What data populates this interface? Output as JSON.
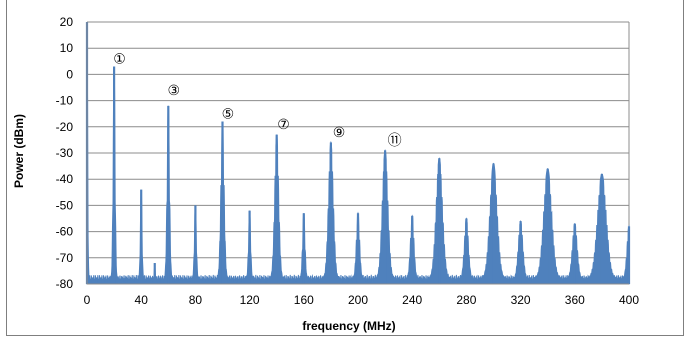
{
  "chart_data": {
    "type": "line",
    "title": "",
    "xlabel": "frequency (MHz)",
    "ylabel": "Power (dBm)",
    "xlim": [
      0,
      400
    ],
    "ylim": [
      -80,
      20
    ],
    "x_ticks": [
      "0",
      "40",
      "80",
      "120",
      "160",
      "200",
      "240",
      "280",
      "320",
      "360",
      "400"
    ],
    "y_ticks": [
      "20",
      "10",
      "0",
      "-10",
      "-20",
      "-30",
      "-40",
      "-50",
      "-60",
      "-70",
      "-80"
    ],
    "grid": "horizontal",
    "legend": "none",
    "series_color": "#4f81bd",
    "noise_floor_dbm": -78,
    "series": [
      {
        "harmonics_mhz": [
          0,
          20,
          40,
          50,
          60,
          80,
          100,
          120,
          140,
          160,
          180,
          200,
          220,
          240,
          260,
          280,
          300,
          320,
          340,
          360,
          380,
          400
        ],
        "peak_dbm": [
          20,
          3,
          -44,
          -72,
          -12,
          -50,
          -18,
          -52,
          -23,
          -53,
          -26,
          -53,
          -29,
          -54,
          -32,
          -55,
          -34,
          -56,
          -36,
          -57,
          -38,
          -58
        ],
        "peak_halfwidth_mhz": [
          0.8,
          1.2,
          1.0,
          0.5,
          1.5,
          1.2,
          2.0,
          1.3,
          2.5,
          1.5,
          3.0,
          2.0,
          3.5,
          2.2,
          4.0,
          2.5,
          4.5,
          2.8,
          5.0,
          3.0,
          5.5,
          2.5
        ]
      }
    ],
    "annotations": [
      {
        "label": "①",
        "x": 24,
        "y": 6
      },
      {
        "label": "③",
        "x": 64,
        "y": -6
      },
      {
        "label": "⑤",
        "x": 104,
        "y": -15
      },
      {
        "label": "⑦",
        "x": 145,
        "y": -19
      },
      {
        "label": "⑨",
        "x": 186,
        "y": -22
      },
      {
        "label": "⑪",
        "x": 227,
        "y": -25
      }
    ]
  }
}
